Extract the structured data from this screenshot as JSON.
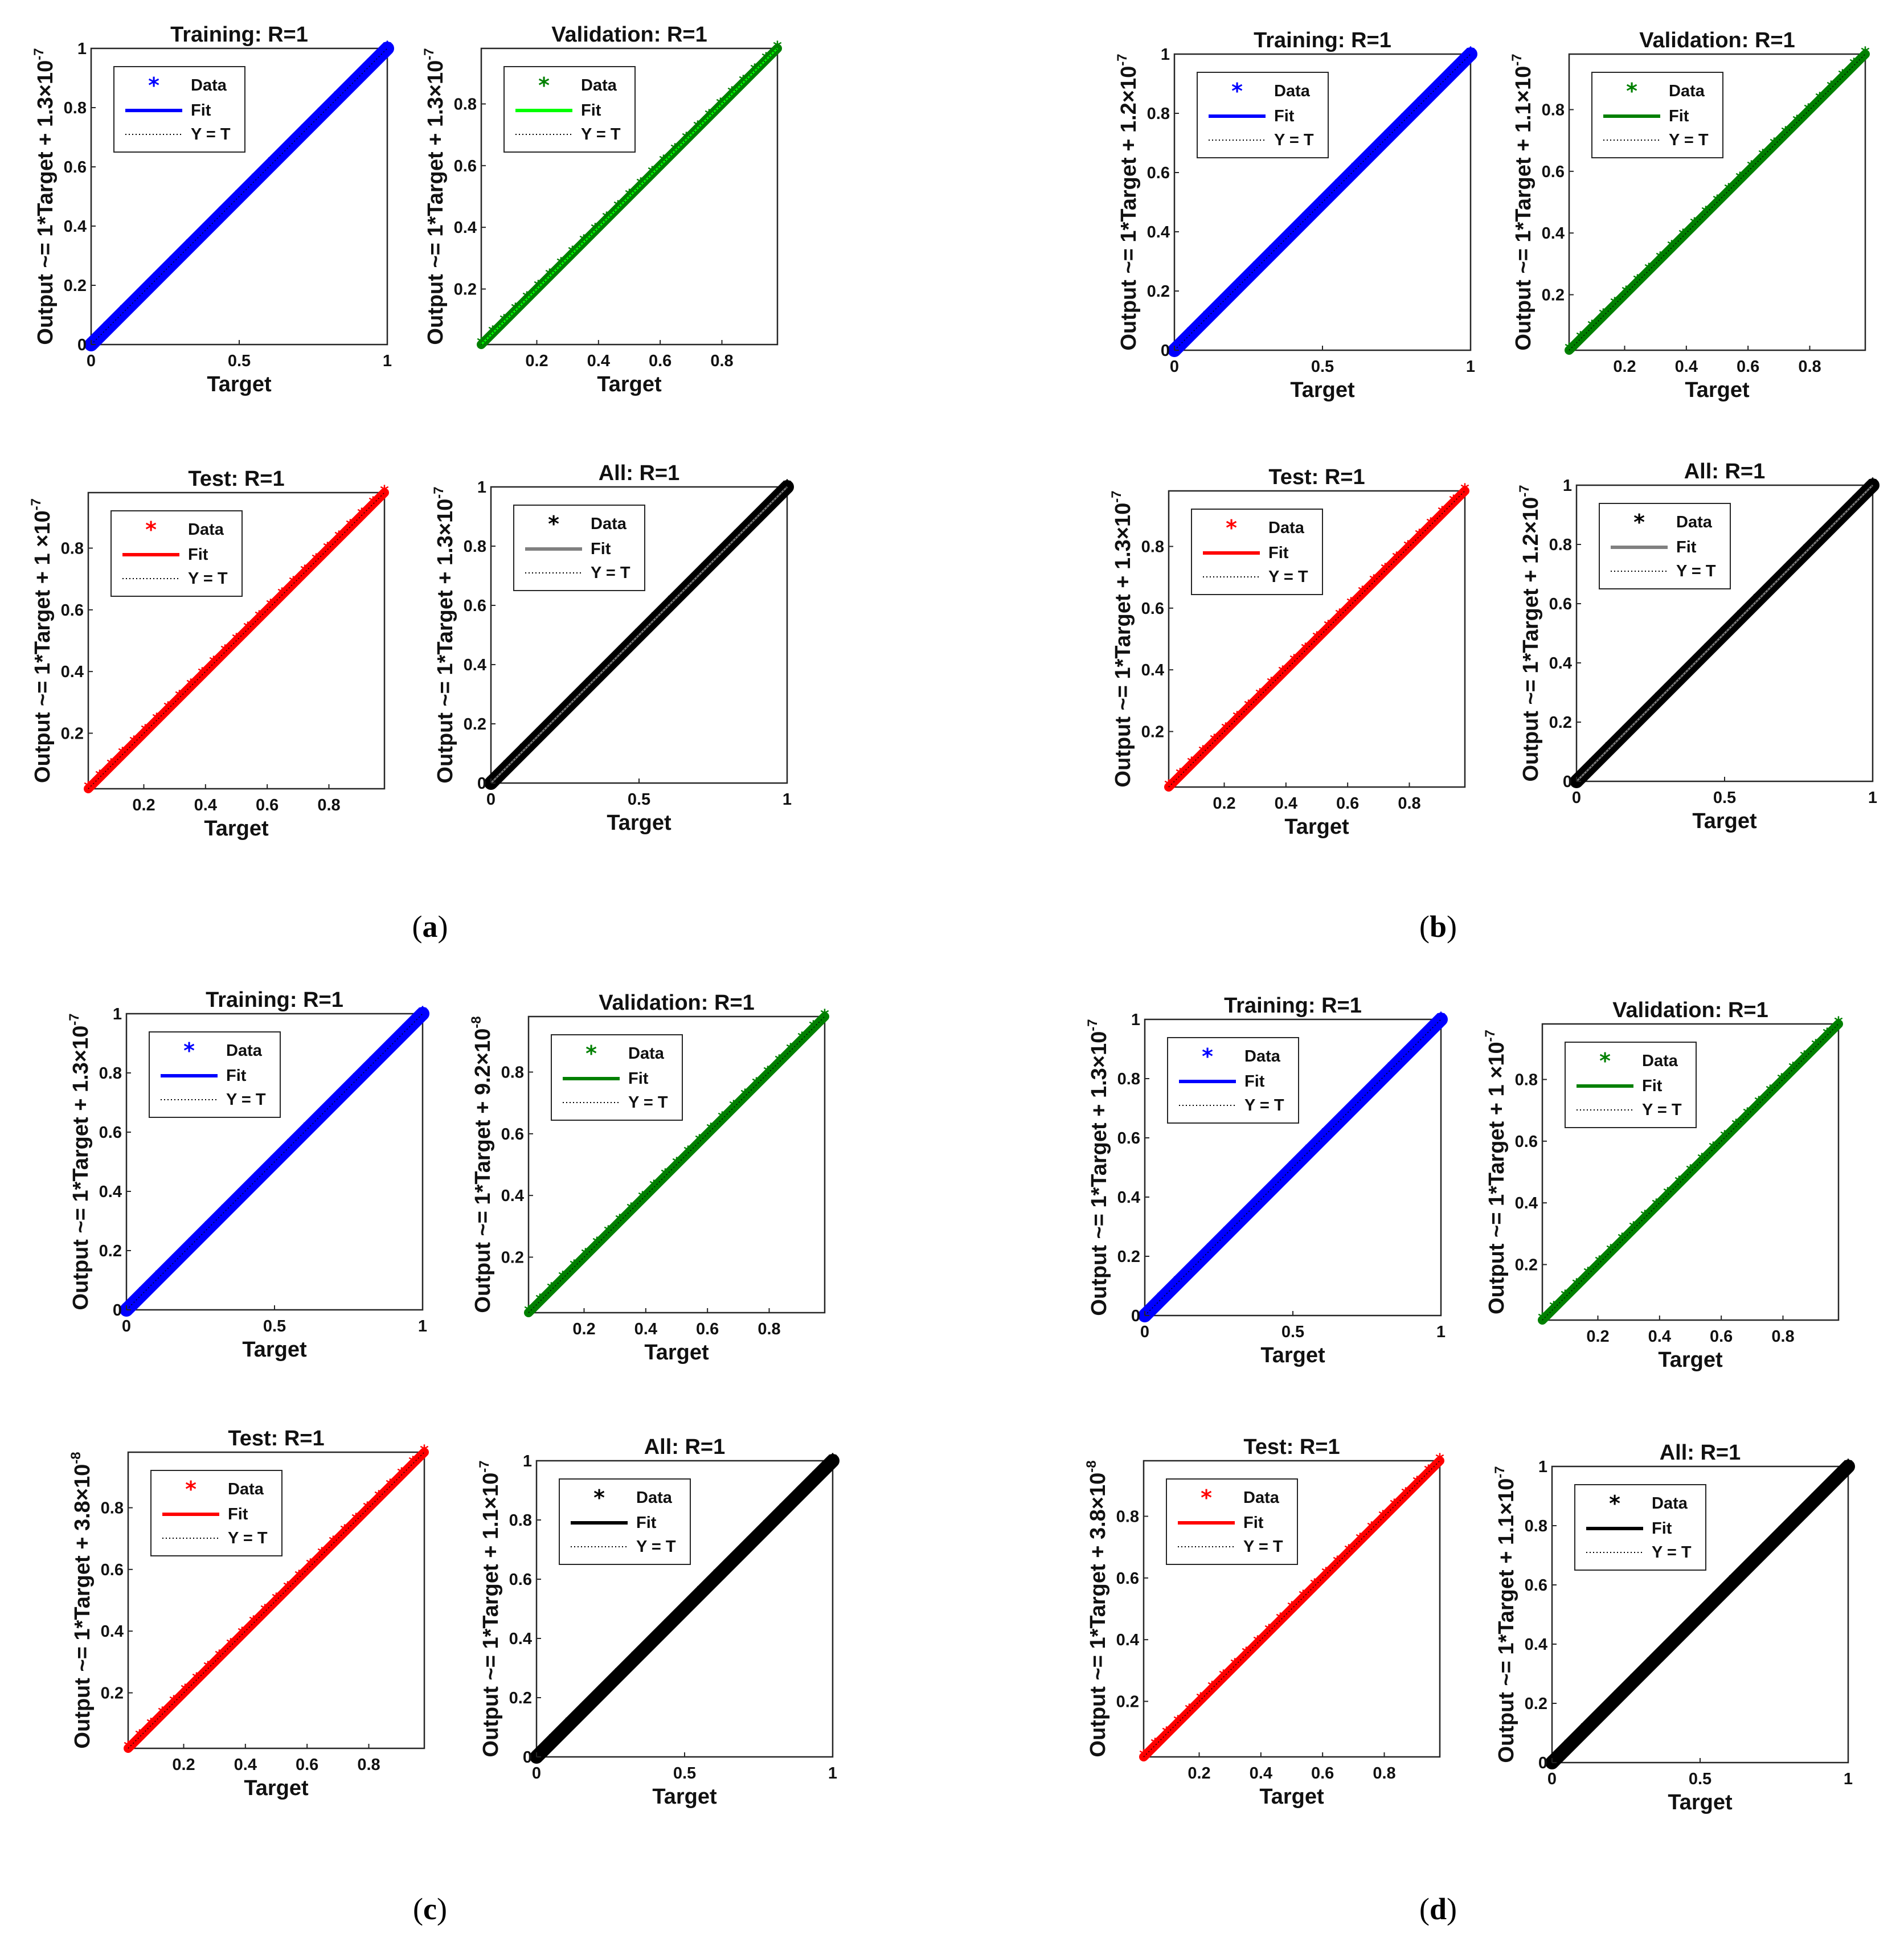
{
  "figure": {
    "panels": [
      {
        "id": "a",
        "caption": {
          "open": "(",
          "letter": "a",
          "close": ")"
        }
      },
      {
        "id": "b",
        "caption": {
          "open": "(",
          "letter": "b",
          "close": ")"
        }
      },
      {
        "id": "c",
        "caption": {
          "open": "(",
          "letter": "c",
          "close": ")"
        }
      },
      {
        "id": "d",
        "caption": {
          "open": "(",
          "letter": "d",
          "close": ")"
        }
      }
    ]
  },
  "legend_labels": {
    "data": "Data",
    "fit": "Fit",
    "yt": "Y = T"
  },
  "xlabel": "Target",
  "colors": {
    "training": "#0000ff",
    "validation": "#008000",
    "validation_fit_a": "#00ff00",
    "test": "#ff0000",
    "all": "#000000",
    "all_fit_gray": "#808080"
  },
  "chart_data": [
    {
      "panel": "a",
      "subplot": "Training",
      "type": "scatter",
      "title": "Training: R=1",
      "xlabel": "Target",
      "ylabel": "Output ~= 1*Target + 1.3×10",
      "ylabel_exp": "-7",
      "xlim": [
        0,
        1
      ],
      "ylim": [
        0,
        1
      ],
      "xticks": [
        "0",
        "0.5",
        "1"
      ],
      "yticks": [
        "0",
        "0.2",
        "0.4",
        "0.6",
        "0.8",
        "1"
      ],
      "x": [
        0,
        1
      ],
      "y": [
        0,
        1
      ],
      "fit": {
        "slope": 1,
        "offset": 1.3e-07
      },
      "color": "#0000ff",
      "fit_color": "#0000ff",
      "legend": [
        "Data",
        "Fit",
        "Y = T"
      ]
    },
    {
      "panel": "a",
      "subplot": "Validation",
      "type": "scatter",
      "title": "Validation: R=1",
      "xlabel": "Target",
      "ylabel": "Output ~= 1*Target + 1.3×10",
      "ylabel_exp": "-7",
      "xlim": [
        0.02,
        0.98
      ],
      "ylim": [
        0.02,
        0.98
      ],
      "xticks": [
        "0.2",
        "0.4",
        "0.6",
        "0.8"
      ],
      "yticks": [
        "0.2",
        "0.4",
        "0.6",
        "0.8"
      ],
      "x": [
        0.02,
        0.98
      ],
      "y": [
        0.02,
        0.98
      ],
      "fit": {
        "slope": 1,
        "offset": 1.3e-07
      },
      "color": "#008000",
      "fit_color": "#00ff00",
      "legend": [
        "Data",
        "Fit",
        "Y = T"
      ]
    },
    {
      "panel": "a",
      "subplot": "Test",
      "type": "scatter",
      "title": "Test: R=1",
      "xlabel": "Target",
      "ylabel": "Output ~= 1*Target + 1 ×10",
      "ylabel_exp": "-7",
      "xlim": [
        0.02,
        0.98
      ],
      "ylim": [
        0.02,
        0.98
      ],
      "xticks": [
        "0.2",
        "0.4",
        "0.6",
        "0.8"
      ],
      "yticks": [
        "0.2",
        "0.4",
        "0.6",
        "0.8"
      ],
      "x": [
        0.02,
        0.98
      ],
      "y": [
        0.02,
        0.98
      ],
      "fit": {
        "slope": 1,
        "offset": 1e-07
      },
      "color": "#ff0000",
      "fit_color": "#ff0000",
      "legend": [
        "Data",
        "Fit",
        "Y = T"
      ]
    },
    {
      "panel": "a",
      "subplot": "All",
      "type": "scatter",
      "title": "All: R=1",
      "xlabel": "Target",
      "ylabel": "Output ~= 1*Target + 1.3×10",
      "ylabel_exp": "-7",
      "xlim": [
        0,
        1
      ],
      "ylim": [
        0,
        1
      ],
      "xticks": [
        "0",
        "0.5",
        "1"
      ],
      "yticks": [
        "0",
        "0.2",
        "0.4",
        "0.6",
        "0.8",
        "1"
      ],
      "x": [
        0,
        1
      ],
      "y": [
        0,
        1
      ],
      "fit": {
        "slope": 1,
        "offset": 1.3e-07
      },
      "color": "#000000",
      "fit_color": "#808080",
      "legend": [
        "Data",
        "Fit",
        "Y = T"
      ]
    },
    {
      "panel": "b",
      "subplot": "Training",
      "type": "scatter",
      "title": "Training: R=1",
      "xlabel": "Target",
      "ylabel": "Output ~= 1*Target + 1.2×10",
      "ylabel_exp": "-7",
      "xlim": [
        0,
        1
      ],
      "ylim": [
        0,
        1
      ],
      "xticks": [
        "0",
        "0.5",
        "1"
      ],
      "yticks": [
        "0",
        "0.2",
        "0.4",
        "0.6",
        "0.8",
        "1"
      ],
      "x": [
        0,
        1
      ],
      "y": [
        0,
        1
      ],
      "fit": {
        "slope": 1,
        "offset": 1.2e-07
      },
      "color": "#0000ff",
      "fit_color": "#0000ff",
      "legend": [
        "Data",
        "Fit",
        "Y = T"
      ]
    },
    {
      "panel": "b",
      "subplot": "Validation",
      "type": "scatter",
      "title": "Validation: R=1",
      "xlabel": "Target",
      "ylabel": "Output ~= 1*Target + 1.1×10",
      "ylabel_exp": "-7",
      "xlim": [
        0.02,
        0.98
      ],
      "ylim": [
        0.02,
        0.98
      ],
      "xticks": [
        "0.2",
        "0.4",
        "0.6",
        "0.8"
      ],
      "yticks": [
        "0.2",
        "0.4",
        "0.6",
        "0.8"
      ],
      "x": [
        0.02,
        0.98
      ],
      "y": [
        0.02,
        0.98
      ],
      "fit": {
        "slope": 1,
        "offset": 1.1e-07
      },
      "color": "#008000",
      "fit_color": "#008000",
      "legend": [
        "Data",
        "Fit",
        "Y = T"
      ]
    },
    {
      "panel": "b",
      "subplot": "Test",
      "type": "scatter",
      "title": "Test: R=1",
      "xlabel": "Target",
      "ylabel": "Output ~= 1*Target + 1.3×10",
      "ylabel_exp": "-7",
      "xlim": [
        0.02,
        0.98
      ],
      "ylim": [
        0.02,
        0.98
      ],
      "xticks": [
        "0.2",
        "0.4",
        "0.6",
        "0.8"
      ],
      "yticks": [
        "0.2",
        "0.4",
        "0.6",
        "0.8"
      ],
      "x": [
        0.02,
        0.98
      ],
      "y": [
        0.02,
        0.98
      ],
      "fit": {
        "slope": 1,
        "offset": 1.3e-07
      },
      "color": "#ff0000",
      "fit_color": "#ff0000",
      "legend": [
        "Data",
        "Fit",
        "Y = T"
      ]
    },
    {
      "panel": "b",
      "subplot": "All",
      "type": "scatter",
      "title": "All: R=1",
      "xlabel": "Target",
      "ylabel": "Output ~= 1*Target + 1.2×10",
      "ylabel_exp": "-7",
      "xlim": [
        0,
        1
      ],
      "ylim": [
        0,
        1
      ],
      "xticks": [
        "0",
        "0.5",
        "1"
      ],
      "yticks": [
        "0",
        "0.2",
        "0.4",
        "0.6",
        "0.8",
        "1"
      ],
      "x": [
        0,
        1
      ],
      "y": [
        0,
        1
      ],
      "fit": {
        "slope": 1,
        "offset": 1.2e-07
      },
      "color": "#000000",
      "fit_color": "#808080",
      "legend": [
        "Data",
        "Fit",
        "Y = T"
      ]
    },
    {
      "panel": "c",
      "subplot": "Training",
      "type": "scatter",
      "title": "Training: R=1",
      "xlabel": "Target",
      "ylabel": "Output ~= 1*Target + 1.3×10",
      "ylabel_exp": "-7",
      "xlim": [
        0,
        1
      ],
      "ylim": [
        0,
        1
      ],
      "xticks": [
        "0",
        "0.5",
        "1"
      ],
      "yticks": [
        "0",
        "0.2",
        "0.4",
        "0.6",
        "0.8",
        "1"
      ],
      "x": [
        0,
        1
      ],
      "y": [
        0,
        1
      ],
      "fit": {
        "slope": 1,
        "offset": 1.3e-07
      },
      "color": "#0000ff",
      "fit_color": "#0000ff",
      "legend": [
        "Data",
        "Fit",
        "Y = T"
      ]
    },
    {
      "panel": "c",
      "subplot": "Validation",
      "type": "scatter",
      "title": "Validation: R=1",
      "xlabel": "Target",
      "ylabel": "Output ~= 1*Target + 9.2×10",
      "ylabel_exp": "-8",
      "xlim": [
        0.02,
        0.98
      ],
      "ylim": [
        0.02,
        0.98
      ],
      "xticks": [
        "0.2",
        "0.4",
        "0.6",
        "0.8"
      ],
      "yticks": [
        "0.2",
        "0.4",
        "0.6",
        "0.8"
      ],
      "x": [
        0.02,
        0.98
      ],
      "y": [
        0.02,
        0.98
      ],
      "fit": {
        "slope": 1,
        "offset": 9.2e-08
      },
      "color": "#008000",
      "fit_color": "#008000",
      "legend": [
        "Data",
        "Fit",
        "Y = T"
      ]
    },
    {
      "panel": "c",
      "subplot": "Test",
      "type": "scatter",
      "title": "Test: R=1",
      "xlabel": "Target",
      "ylabel": "Output ~= 1*Target + 3.8×10",
      "ylabel_exp": "-8",
      "xlim": [
        0.02,
        0.98
      ],
      "ylim": [
        0.02,
        0.98
      ],
      "xticks": [
        "0.2",
        "0.4",
        "0.6",
        "0.8"
      ],
      "yticks": [
        "0.2",
        "0.4",
        "0.6",
        "0.8"
      ],
      "x": [
        0.02,
        0.98
      ],
      "y": [
        0.02,
        0.98
      ],
      "fit": {
        "slope": 1,
        "offset": 3.8e-08
      },
      "color": "#ff0000",
      "fit_color": "#ff0000",
      "legend": [
        "Data",
        "Fit",
        "Y = T"
      ]
    },
    {
      "panel": "c",
      "subplot": "All",
      "type": "scatter",
      "title": "All: R=1",
      "xlabel": "Target",
      "ylabel": "Output ~= 1*Target + 1.1×10",
      "ylabel_exp": "-7",
      "xlim": [
        0,
        1
      ],
      "ylim": [
        0,
        1
      ],
      "xticks": [
        "0",
        "0.5",
        "1"
      ],
      "yticks": [
        "0",
        "0.2",
        "0.4",
        "0.6",
        "0.8",
        "1"
      ],
      "x": [
        0,
        1
      ],
      "y": [
        0,
        1
      ],
      "fit": {
        "slope": 1,
        "offset": 1.1e-07
      },
      "color": "#000000",
      "fit_color": "#000000",
      "legend": [
        "Data",
        "Fit",
        "Y = T"
      ]
    },
    {
      "panel": "d",
      "subplot": "Training",
      "type": "scatter",
      "title": "Training: R=1",
      "xlabel": "Target",
      "ylabel": "Output ~= 1*Target + 1.3×10",
      "ylabel_exp": "-7",
      "xlim": [
        0,
        1
      ],
      "ylim": [
        0,
        1
      ],
      "xticks": [
        "0",
        "0.5",
        "1"
      ],
      "yticks": [
        "0",
        "0.2",
        "0.4",
        "0.6",
        "0.8",
        "1"
      ],
      "x": [
        0,
        1
      ],
      "y": [
        0,
        1
      ],
      "fit": {
        "slope": 1,
        "offset": 1.3e-07
      },
      "color": "#0000ff",
      "fit_color": "#0000ff",
      "legend": [
        "Data",
        "Fit",
        "Y = T"
      ]
    },
    {
      "panel": "d",
      "subplot": "Validation",
      "type": "scatter",
      "title": "Validation: R=1",
      "xlabel": "Target",
      "ylabel": "Output ~= 1*Target + 1 ×10",
      "ylabel_exp": "-7",
      "xlim": [
        0.02,
        0.98
      ],
      "ylim": [
        0.02,
        0.98
      ],
      "xticks": [
        "0.2",
        "0.4",
        "0.6",
        "0.8"
      ],
      "yticks": [
        "0.2",
        "0.4",
        "0.6",
        "0.8"
      ],
      "x": [
        0.02,
        0.98
      ],
      "y": [
        0.02,
        0.98
      ],
      "fit": {
        "slope": 1,
        "offset": 1e-07
      },
      "color": "#008000",
      "fit_color": "#008000",
      "legend": [
        "Data",
        "Fit",
        "Y = T"
      ]
    },
    {
      "panel": "d",
      "subplot": "Test",
      "type": "scatter",
      "title": "Test: R=1",
      "xlabel": "Target",
      "ylabel": "Output ~= 1*Target + 3.8×10",
      "ylabel_exp": "-8",
      "xlim": [
        0.02,
        0.98
      ],
      "ylim": [
        0.02,
        0.98
      ],
      "xticks": [
        "0.2",
        "0.4",
        "0.6",
        "0.8"
      ],
      "yticks": [
        "0.2",
        "0.4",
        "0.6",
        "0.8"
      ],
      "x": [
        0.02,
        0.98
      ],
      "y": [
        0.02,
        0.98
      ],
      "fit": {
        "slope": 1,
        "offset": 3.8e-08
      },
      "color": "#ff0000",
      "fit_color": "#ff0000",
      "legend": [
        "Data",
        "Fit",
        "Y = T"
      ]
    },
    {
      "panel": "d",
      "subplot": "All",
      "type": "scatter",
      "title": "All: R=1",
      "xlabel": "Target",
      "ylabel": "Output ~= 1*Target + 1.1×10",
      "ylabel_exp": "-7",
      "xlim": [
        0,
        1
      ],
      "ylim": [
        0,
        1
      ],
      "xticks": [
        "0",
        "0.5",
        "1"
      ],
      "yticks": [
        "0",
        "0.2",
        "0.4",
        "0.6",
        "0.8",
        "1"
      ],
      "x": [
        0,
        1
      ],
      "y": [
        0,
        1
      ],
      "fit": {
        "slope": 1,
        "offset": 1.1e-07
      },
      "color": "#000000",
      "fit_color": "#000000",
      "legend": [
        "Data",
        "Fit",
        "Y = T"
      ]
    }
  ]
}
